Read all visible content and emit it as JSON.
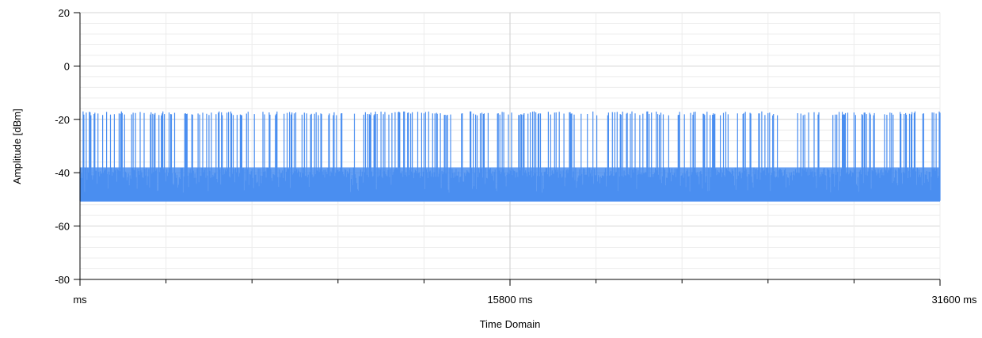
{
  "chart_data": {
    "type": "line",
    "title": "",
    "xlabel": "Time Domain",
    "ylabel": "Amplitude [dBm]",
    "xlim": [
      0,
      31600
    ],
    "ylim": [
      -80,
      20
    ],
    "y_ticks": [
      20,
      0,
      -20,
      -40,
      -60,
      -80
    ],
    "x_tick_labels": [
      "ms",
      "15800 ms",
      "31600 ms"
    ],
    "x_tick_label_values": [
      0,
      15800,
      31600
    ],
    "x_minor_ticks": 10,
    "grid": true,
    "legend": "none",
    "series": [
      {
        "color": "#4a8ef0",
        "floor": -50.5,
        "band_top": -38,
        "peak": -18.5,
        "burst_count": 300,
        "description_of_signal": "dense periodic bursts: noise floor near -50.5 dBm, body up to about -38 dBm, peaks reaching about -18.5 dBm"
      }
    ]
  },
  "colors": {
    "series": "#4a8ef0",
    "grid_major": "#d4d4d4",
    "grid_minor": "#ececec",
    "axis": "#000000"
  }
}
